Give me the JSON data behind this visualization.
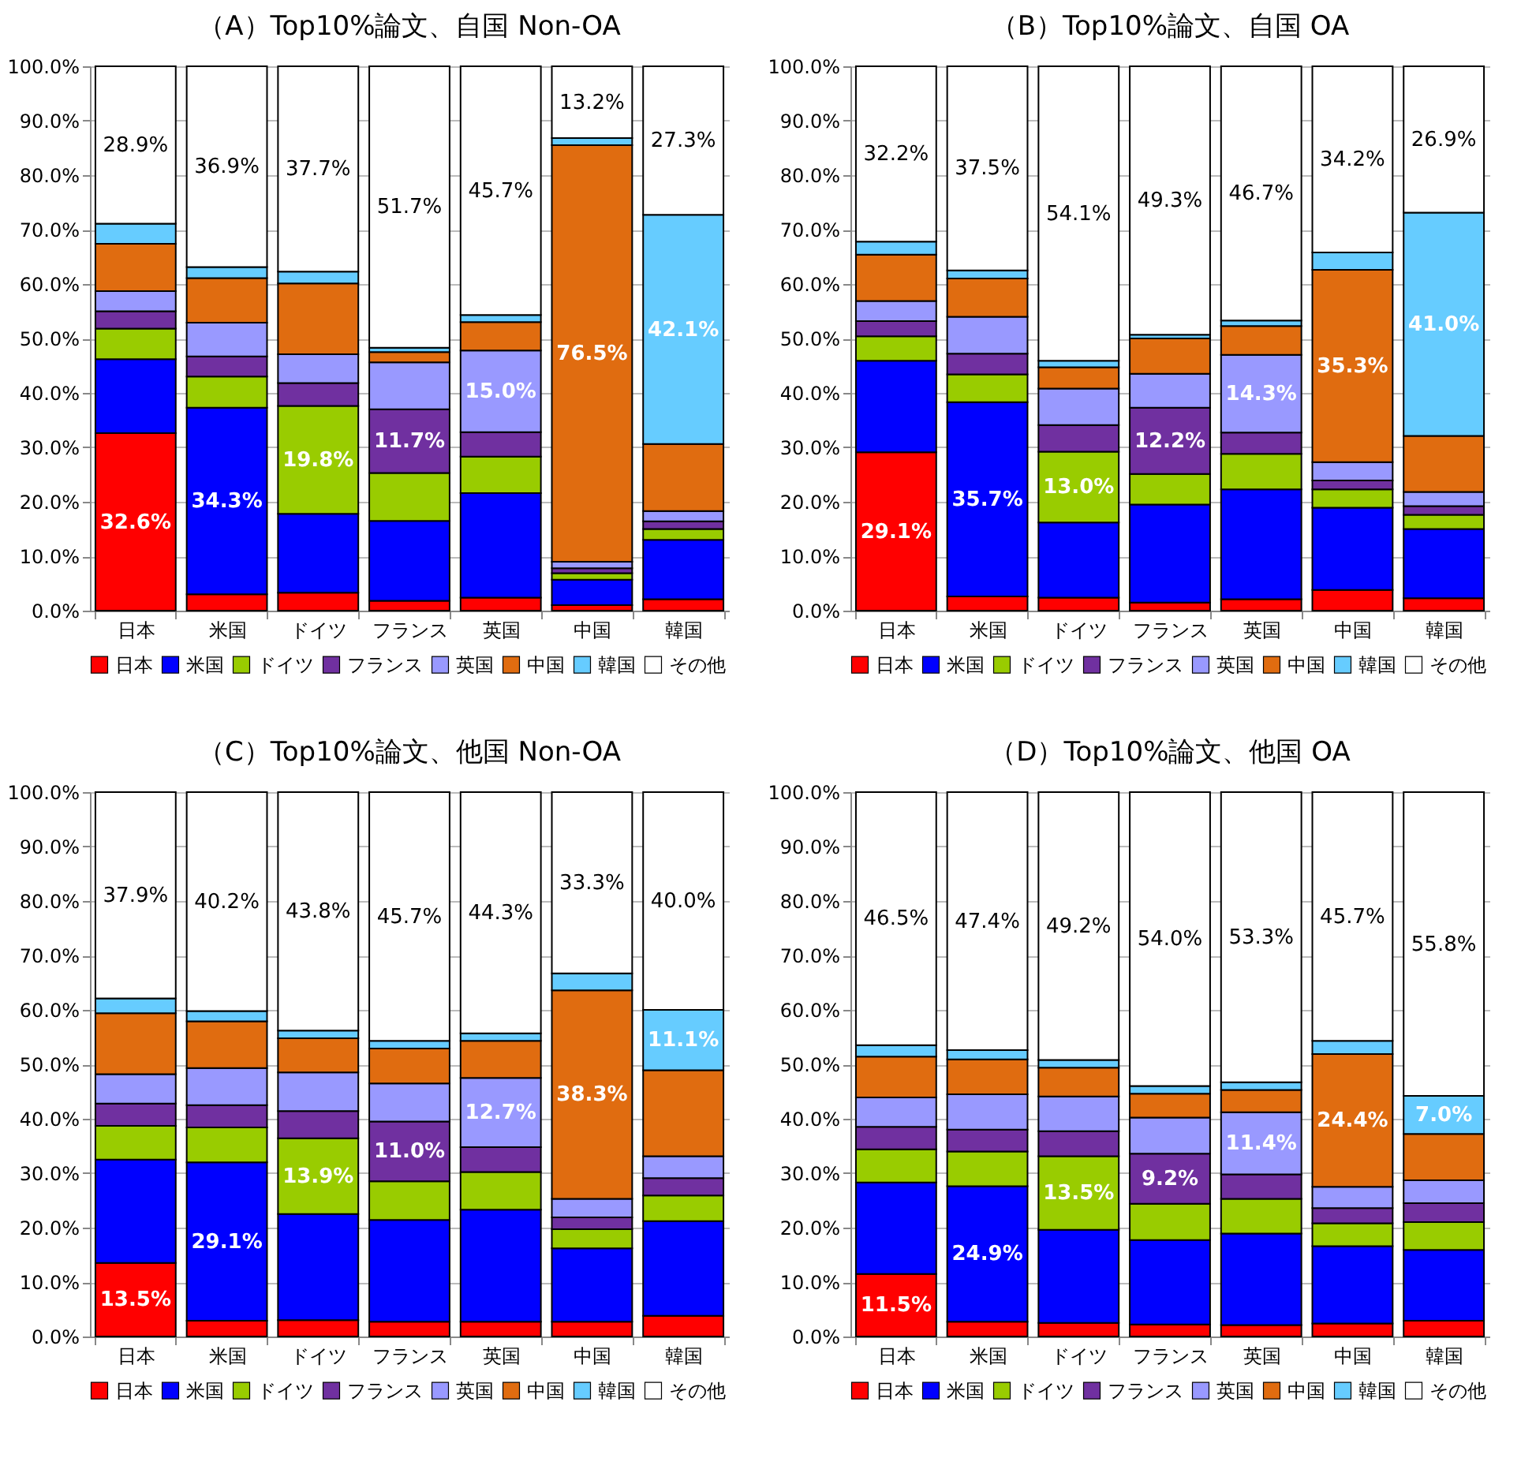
{
  "chart_data": [
    {
      "type": "bar",
      "stacked": true,
      "title": "（A）Top10%論文、自国 Non-OA",
      "categories": [
        "日本",
        "米国",
        "ドイツ",
        "フランス",
        "英国",
        "中国",
        "韓国"
      ],
      "ylim": [
        0,
        100
      ],
      "yticks": [
        {
          "value": 0,
          "label": "0.0%"
        },
        {
          "value": 10,
          "label": "10.0%"
        },
        {
          "value": 20,
          "label": "20.0%"
        },
        {
          "value": 30,
          "label": "30.0%"
        },
        {
          "value": 40,
          "label": "40.0%"
        },
        {
          "value": 50,
          "label": "50.0%"
        },
        {
          "value": 60,
          "label": "60.0%"
        },
        {
          "value": 70,
          "label": "70.0%"
        },
        {
          "value": 80,
          "label": "80.0%"
        },
        {
          "value": 90,
          "label": "90.0%"
        },
        {
          "value": 100,
          "label": "100.0%"
        }
      ],
      "grid": "y",
      "legend": "bottom",
      "series": [
        {
          "name": "日本",
          "color": "#ff0000",
          "values": [
            32.6,
            3.0,
            3.3,
            1.8,
            2.4,
            1.0,
            2.1
          ],
          "value_labels": [
            "32.6%",
            null,
            null,
            null,
            null,
            null,
            null
          ]
        },
        {
          "name": "米国",
          "color": "#0000ff",
          "values": [
            13.6,
            34.3,
            14.5,
            14.7,
            19.2,
            4.7,
            10.9
          ],
          "value_labels": [
            null,
            "34.3%",
            null,
            null,
            null,
            null,
            null
          ]
        },
        {
          "name": "ドイツ",
          "color": "#99cc00",
          "values": [
            5.6,
            5.7,
            19.8,
            8.8,
            6.7,
            1.2,
            2.0
          ],
          "value_labels": [
            null,
            null,
            "19.8%",
            null,
            null,
            null,
            null
          ]
        },
        {
          "name": "フランス",
          "color": "#7030a0",
          "values": [
            3.2,
            3.7,
            4.2,
            11.7,
            4.5,
            0.9,
            1.4
          ],
          "value_labels": [
            null,
            null,
            null,
            "11.7%",
            null,
            null,
            null
          ]
        },
        {
          "name": "英国",
          "color": "#9999ff",
          "values": [
            3.7,
            6.2,
            5.3,
            8.6,
            15.0,
            1.2,
            1.9
          ],
          "value_labels": [
            null,
            null,
            null,
            null,
            "15.0%",
            null,
            null
          ]
        },
        {
          "name": "中国",
          "color": "#e06c10",
          "values": [
            8.7,
            8.2,
            13.0,
            1.9,
            5.2,
            76.5,
            12.3
          ],
          "value_labels": [
            null,
            null,
            null,
            null,
            null,
            "76.5%",
            null
          ]
        },
        {
          "name": "韓国",
          "color": "#66ccff",
          "values": [
            3.7,
            2.0,
            2.2,
            0.8,
            1.3,
            1.3,
            42.1
          ],
          "value_labels": [
            null,
            null,
            null,
            null,
            null,
            null,
            "42.1%"
          ]
        },
        {
          "name": "その他",
          "color": "#ffffff",
          "values": [
            28.9,
            36.9,
            37.7,
            51.7,
            45.7,
            13.2,
            27.3
          ],
          "value_labels": [
            "28.9%",
            "36.9%",
            "37.7%",
            "51.7%",
            "45.7%",
            "13.2%",
            "27.3%"
          ]
        }
      ]
    },
    {
      "type": "bar",
      "stacked": true,
      "title": "（B）Top10%論文、自国 OA",
      "categories": [
        "日本",
        "米国",
        "ドイツ",
        "フランス",
        "英国",
        "中国",
        "韓国"
      ],
      "ylim": [
        0,
        100
      ],
      "yticks": [
        {
          "value": 0,
          "label": "0.0%"
        },
        {
          "value": 10,
          "label": "10.0%"
        },
        {
          "value": 20,
          "label": "20.0%"
        },
        {
          "value": 30,
          "label": "30.0%"
        },
        {
          "value": 40,
          "label": "40.0%"
        },
        {
          "value": 50,
          "label": "50.0%"
        },
        {
          "value": 60,
          "label": "60.0%"
        },
        {
          "value": 70,
          "label": "70.0%"
        },
        {
          "value": 80,
          "label": "80.0%"
        },
        {
          "value": 90,
          "label": "90.0%"
        },
        {
          "value": 100,
          "label": "100.0%"
        }
      ],
      "grid": "y",
      "legend": "bottom",
      "series": [
        {
          "name": "日本",
          "color": "#ff0000",
          "values": [
            29.1,
            2.6,
            2.4,
            1.5,
            2.1,
            3.8,
            2.3
          ],
          "value_labels": [
            "29.1%",
            null,
            null,
            null,
            null,
            null,
            null
          ]
        },
        {
          "name": "米国",
          "color": "#0000ff",
          "values": [
            16.8,
            35.7,
            13.8,
            18.0,
            20.2,
            15.1,
            12.7
          ],
          "value_labels": [
            null,
            "35.7%",
            null,
            null,
            null,
            null,
            null
          ]
        },
        {
          "name": "ドイツ",
          "color": "#99cc00",
          "values": [
            4.5,
            5.1,
            13.0,
            5.6,
            6.5,
            3.4,
            2.6
          ],
          "value_labels": [
            null,
            null,
            "13.0%",
            null,
            null,
            null,
            null
          ]
        },
        {
          "name": "フランス",
          "color": "#7030a0",
          "values": [
            2.8,
            3.8,
            4.9,
            12.2,
            3.9,
            1.6,
            1.6
          ],
          "value_labels": [
            null,
            null,
            null,
            "12.2%",
            null,
            null,
            null
          ]
        },
        {
          "name": "英国",
          "color": "#9999ff",
          "values": [
            3.7,
            6.8,
            6.7,
            6.2,
            14.3,
            3.4,
            2.6
          ],
          "value_labels": [
            null,
            null,
            null,
            null,
            "14.3%",
            null,
            null
          ]
        },
        {
          "name": "中国",
          "color": "#e06c10",
          "values": [
            8.5,
            7.0,
            3.9,
            6.5,
            5.3,
            35.3,
            10.3
          ],
          "value_labels": [
            null,
            null,
            null,
            null,
            null,
            "35.3%",
            null
          ]
        },
        {
          "name": "韓国",
          "color": "#66ccff",
          "values": [
            2.4,
            1.5,
            1.2,
            0.7,
            1.0,
            3.2,
            41.0
          ],
          "value_labels": [
            null,
            null,
            null,
            null,
            null,
            null,
            "41.0%"
          ]
        },
        {
          "name": "その他",
          "color": "#ffffff",
          "values": [
            32.2,
            37.5,
            54.1,
            49.3,
            46.7,
            34.2,
            26.9
          ],
          "value_labels": [
            "32.2%",
            "37.5%",
            "54.1%",
            "49.3%",
            "46.7%",
            "34.2%",
            "26.9%"
          ]
        }
      ]
    },
    {
      "type": "bar",
      "stacked": true,
      "title": "（C）Top10%論文、他国 Non-OA",
      "categories": [
        "日本",
        "米国",
        "ドイツ",
        "フランス",
        "英国",
        "中国",
        "韓国"
      ],
      "ylim": [
        0,
        100
      ],
      "yticks": [
        {
          "value": 0,
          "label": "0.0%"
        },
        {
          "value": 10,
          "label": "10.0%"
        },
        {
          "value": 20,
          "label": "20.0%"
        },
        {
          "value": 30,
          "label": "30.0%"
        },
        {
          "value": 40,
          "label": "40.0%"
        },
        {
          "value": 50,
          "label": "50.0%"
        },
        {
          "value": 60,
          "label": "60.0%"
        },
        {
          "value": 70,
          "label": "70.0%"
        },
        {
          "value": 80,
          "label": "80.0%"
        },
        {
          "value": 90,
          "label": "90.0%"
        },
        {
          "value": 100,
          "label": "100.0%"
        }
      ],
      "grid": "y",
      "legend": "bottom",
      "series": [
        {
          "name": "日本",
          "color": "#ff0000",
          "values": [
            13.5,
            2.9,
            3.0,
            2.7,
            2.7,
            2.7,
            3.8
          ],
          "value_labels": [
            "13.5%",
            null,
            null,
            null,
            null,
            null,
            null
          ]
        },
        {
          "name": "米国",
          "color": "#0000ff",
          "values": [
            19.0,
            29.1,
            19.5,
            18.7,
            20.6,
            13.5,
            17.4
          ],
          "value_labels": [
            null,
            "29.1%",
            null,
            null,
            null,
            null,
            null
          ]
        },
        {
          "name": "ドイツ",
          "color": "#99cc00",
          "values": [
            6.2,
            6.4,
            13.9,
            7.1,
            6.9,
            3.5,
            4.7
          ],
          "value_labels": [
            null,
            null,
            "13.9%",
            null,
            null,
            null,
            null
          ]
        },
        {
          "name": "フランス",
          "color": "#7030a0",
          "values": [
            4.1,
            4.1,
            5.0,
            11.0,
            4.6,
            2.2,
            3.2
          ],
          "value_labels": [
            null,
            null,
            null,
            "11.0%",
            null,
            null,
            null
          ]
        },
        {
          "name": "英国",
          "color": "#9999ff",
          "values": [
            5.4,
            6.8,
            7.1,
            7.0,
            12.7,
            3.4,
            4.0
          ],
          "value_labels": [
            null,
            null,
            null,
            null,
            "12.7%",
            null,
            null
          ]
        },
        {
          "name": "中国",
          "color": "#e06c10",
          "values": [
            11.2,
            8.6,
            6.3,
            6.4,
            6.8,
            38.3,
            15.8
          ],
          "value_labels": [
            null,
            null,
            null,
            null,
            null,
            "38.3%",
            null
          ]
        },
        {
          "name": "韓国",
          "color": "#66ccff",
          "values": [
            2.7,
            1.9,
            1.4,
            1.4,
            1.4,
            3.1,
            11.1
          ],
          "value_labels": [
            null,
            null,
            null,
            null,
            null,
            null,
            "11.1%"
          ]
        },
        {
          "name": "その他",
          "color": "#ffffff",
          "values": [
            37.9,
            40.2,
            43.8,
            45.7,
            44.3,
            33.3,
            40.0
          ],
          "value_labels": [
            "37.9%",
            "40.2%",
            "43.8%",
            "45.7%",
            "44.3%",
            "33.3%",
            "40.0%"
          ]
        }
      ]
    },
    {
      "type": "bar",
      "stacked": true,
      "title": "（D）Top10%論文、他国 OA",
      "categories": [
        "日本",
        "米国",
        "ドイツ",
        "フランス",
        "英国",
        "中国",
        "韓国"
      ],
      "ylim": [
        0,
        100
      ],
      "yticks": [
        {
          "value": 0,
          "label": "0.0%"
        },
        {
          "value": 10,
          "label": "10.0%"
        },
        {
          "value": 20,
          "label": "20.0%"
        },
        {
          "value": 30,
          "label": "30.0%"
        },
        {
          "value": 40,
          "label": "40.0%"
        },
        {
          "value": 50,
          "label": "50.0%"
        },
        {
          "value": 60,
          "label": "60.0%"
        },
        {
          "value": 70,
          "label": "70.0%"
        },
        {
          "value": 80,
          "label": "80.0%"
        },
        {
          "value": 90,
          "label": "90.0%"
        },
        {
          "value": 100,
          "label": "100.0%"
        }
      ],
      "grid": "y",
      "legend": "bottom",
      "series": [
        {
          "name": "日本",
          "color": "#ff0000",
          "values": [
            11.5,
            2.7,
            2.5,
            2.2,
            2.1,
            2.4,
            2.9
          ],
          "value_labels": [
            "11.5%",
            null,
            null,
            null,
            null,
            null,
            null
          ]
        },
        {
          "name": "米国",
          "color": "#0000ff",
          "values": [
            16.8,
            24.9,
            17.1,
            15.5,
            16.8,
            14.2,
            13.0
          ],
          "value_labels": [
            null,
            "24.9%",
            null,
            null,
            null,
            null,
            null
          ]
        },
        {
          "name": "ドイツ",
          "color": "#99cc00",
          "values": [
            6.1,
            6.4,
            13.5,
            6.7,
            6.4,
            4.2,
            5.1
          ],
          "value_labels": [
            null,
            null,
            "13.5%",
            null,
            null,
            null,
            null
          ]
        },
        {
          "name": "フランス",
          "color": "#7030a0",
          "values": [
            4.1,
            4.0,
            4.6,
            9.2,
            4.5,
            2.8,
            3.5
          ],
          "value_labels": [
            null,
            null,
            null,
            "9.2%",
            null,
            null,
            null
          ]
        },
        {
          "name": "英国",
          "color": "#9999ff",
          "values": [
            5.4,
            6.5,
            6.4,
            6.6,
            11.4,
            3.9,
            4.2
          ],
          "value_labels": [
            null,
            null,
            null,
            null,
            "11.4%",
            null,
            null
          ]
        },
        {
          "name": "中国",
          "color": "#e06c10",
          "values": [
            7.5,
            6.4,
            5.3,
            4.4,
            4.1,
            24.4,
            8.5
          ],
          "value_labels": [
            null,
            null,
            null,
            null,
            null,
            "24.4%",
            null
          ]
        },
        {
          "name": "韓国",
          "color": "#66ccff",
          "values": [
            2.1,
            1.7,
            1.4,
            1.4,
            1.4,
            2.4,
            7.0
          ],
          "value_labels": [
            null,
            null,
            null,
            null,
            null,
            null,
            "7.0%"
          ]
        },
        {
          "name": "その他",
          "color": "#ffffff",
          "values": [
            46.5,
            47.4,
            49.2,
            54.0,
            53.3,
            45.7,
            55.8
          ],
          "value_labels": [
            "46.5%",
            "47.4%",
            "49.2%",
            "54.0%",
            "53.3%",
            "45.7%",
            "55.8%"
          ]
        }
      ]
    }
  ]
}
